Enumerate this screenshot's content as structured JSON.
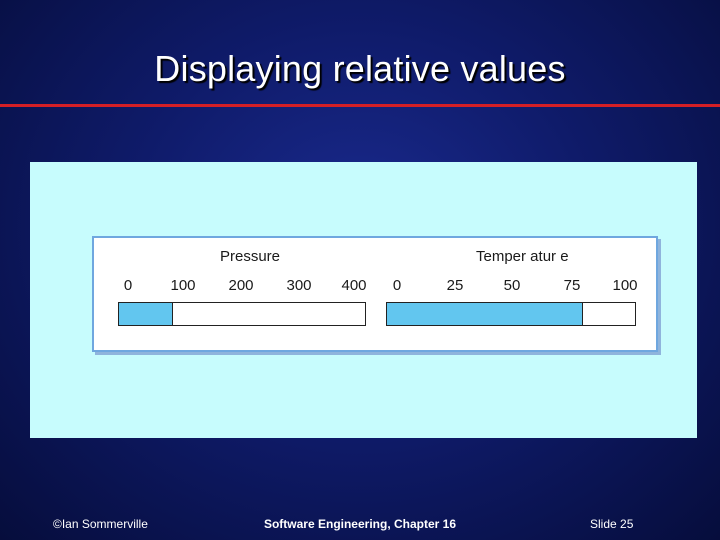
{
  "slide": {
    "title": "Displaying relative values",
    "author": "©Ian Sommerville",
    "course": "Software Engineering, Chapter 16",
    "slide_number": "Slide  25"
  },
  "colors": {
    "background": "#0f1b6a",
    "rule": "#d41f26",
    "panel": "#c7fcfd",
    "fill": "#62c6ef"
  },
  "gauges": [
    {
      "label": "Pressure",
      "ticks": [
        "0",
        "100",
        "200",
        "300",
        "400"
      ],
      "fill_fraction": 0.22
    },
    {
      "label": "Temper atur e",
      "ticks": [
        "0",
        "25",
        "50",
        "75",
        "100"
      ],
      "fill_fraction": 0.79
    }
  ]
}
